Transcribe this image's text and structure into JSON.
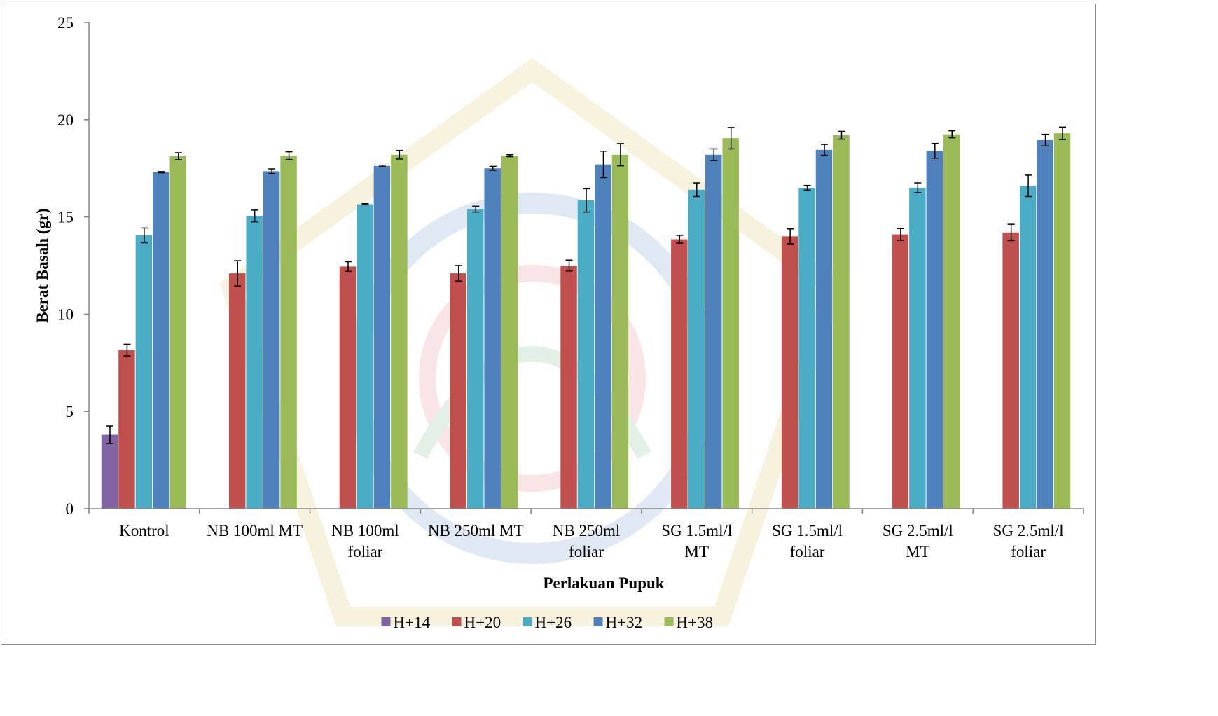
{
  "chart_data": {
    "type": "bar",
    "title": "",
    "xlabel": "Perlakuan Pupuk",
    "ylabel": "Berat Basah (gr)",
    "ylim": [
      0,
      25
    ],
    "yticks": [
      0,
      5,
      10,
      15,
      20,
      25
    ],
    "grid": false,
    "legend_position": "bottom",
    "categories": [
      [
        "Kontrol"
      ],
      [
        "NB 100ml MT"
      ],
      [
        "NB 100ml",
        "foliar"
      ],
      [
        "NB 250ml MT"
      ],
      [
        "NB 250ml",
        "foliar"
      ],
      [
        "SG 1.5ml/l",
        "MT"
      ],
      [
        "SG 1.5ml/l",
        "foliar"
      ],
      [
        "SG 2.5ml/l",
        "MT"
      ],
      [
        "SG 2.5ml/l",
        "foliar"
      ]
    ],
    "series": [
      {
        "name": "H+14",
        "color": "#8064A2",
        "values": [
          3.8,
          null,
          null,
          null,
          null,
          null,
          null,
          null,
          null
        ],
        "errors": [
          0.45,
          null,
          null,
          null,
          null,
          null,
          null,
          null,
          null
        ]
      },
      {
        "name": "H+20",
        "color": "#C0504D",
        "values": [
          8.15,
          12.1,
          12.45,
          12.1,
          12.5,
          13.85,
          14.0,
          14.1,
          14.2
        ],
        "errors": [
          0.3,
          0.65,
          0.25,
          0.4,
          0.28,
          0.2,
          0.38,
          0.3,
          0.42
        ]
      },
      {
        "name": "H+26",
        "color": "#4BACC6",
        "values": [
          14.05,
          15.05,
          15.65,
          15.4,
          15.85,
          16.4,
          16.5,
          16.5,
          16.6
        ],
        "errors": [
          0.38,
          0.3,
          0.03,
          0.15,
          0.6,
          0.35,
          0.12,
          0.25,
          0.55
        ]
      },
      {
        "name": "H+32",
        "color": "#4F81BD",
        "values": [
          17.3,
          17.35,
          17.62,
          17.5,
          17.7,
          18.2,
          18.45,
          18.4,
          18.95
        ],
        "errors": [
          0.03,
          0.12,
          0.04,
          0.1,
          0.68,
          0.3,
          0.28,
          0.38,
          0.3
        ]
      },
      {
        "name": "H+38",
        "color": "#9BBB59",
        "values": [
          18.12,
          18.15,
          18.2,
          18.15,
          18.2,
          19.05,
          19.2,
          19.25,
          19.3
        ],
        "errors": [
          0.18,
          0.2,
          0.22,
          0.05,
          0.57,
          0.55,
          0.2,
          0.18,
          0.32
        ]
      }
    ]
  }
}
